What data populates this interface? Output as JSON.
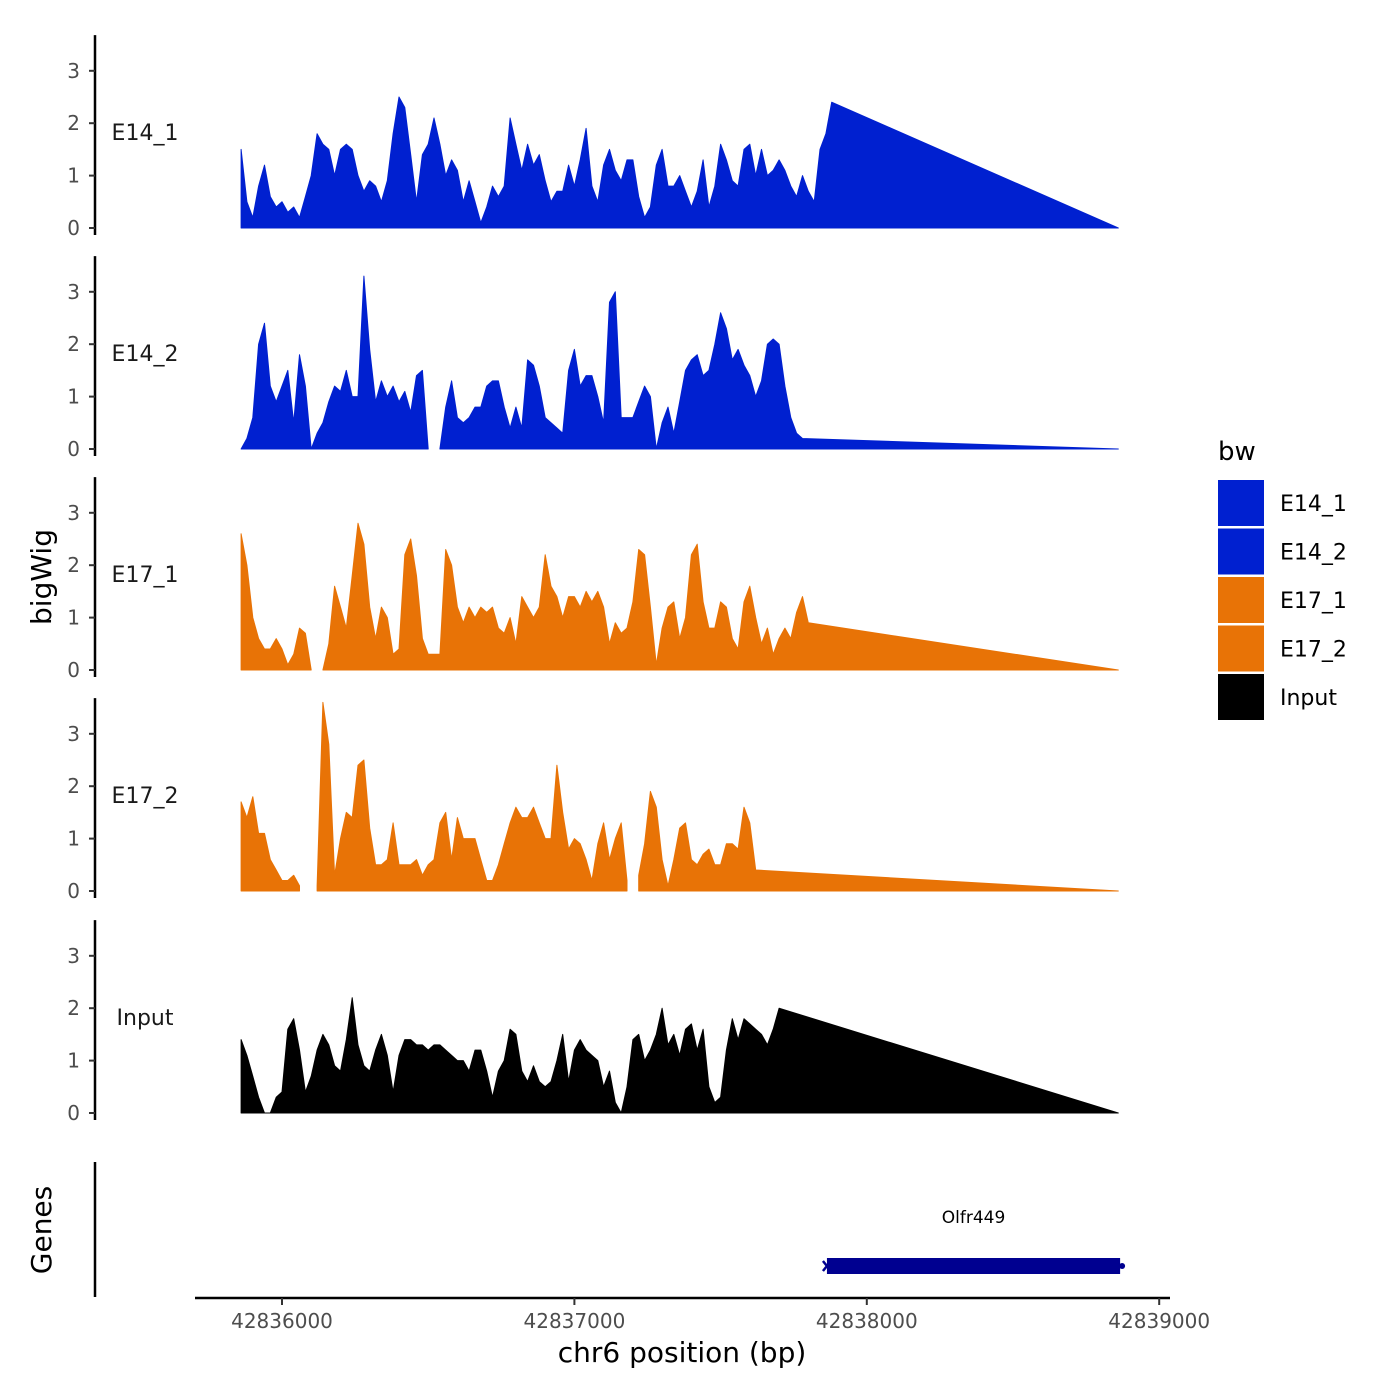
{
  "chart_data": {
    "type": "area",
    "subtype": "genome-browser-tracks",
    "xlabel": "chr6 position (bp)",
    "ylabel": "bigWig",
    "gene_track_label": "Genes",
    "xlim": [
      42835700,
      42839000
    ],
    "ylim": [
      0,
      3.7
    ],
    "x_ticks": [
      42836000,
      42837000,
      42838000,
      42839000
    ],
    "x_tick_labels": [
      "42836000",
      "42837000",
      "42838000",
      "42839000"
    ],
    "y_ticks": [
      0,
      1,
      2,
      3
    ],
    "y_tick_labels": [
      "0",
      "1",
      "2",
      "3"
    ],
    "x_start": 42835860,
    "x_end": 42838860,
    "step": 20,
    "legend": {
      "title": "bw",
      "position": "right",
      "entries": [
        {
          "label": "E14_1",
          "color": "#0020d0"
        },
        {
          "label": "E14_2",
          "color": "#0020d0"
        },
        {
          "label": "E17_1",
          "color": "#e87306"
        },
        {
          "label": "E17_2",
          "color": "#e87306"
        },
        {
          "label": "Input",
          "color": "#000000"
        }
      ]
    },
    "series": [
      {
        "name": "E14_1",
        "color": "#0020d0",
        "values": [
          1.5,
          0.5,
          0.2,
          0.8,
          1.2,
          0.6,
          0.4,
          0.5,
          0.3,
          0.4,
          0.2,
          0.6,
          1.0,
          1.8,
          1.6,
          1.5,
          1.0,
          1.5,
          1.6,
          1.5,
          1.0,
          0.7,
          0.9,
          0.8,
          0.5,
          0.9,
          1.8,
          2.5,
          2.3,
          1.4,
          0.5,
          1.4,
          1.6,
          2.1,
          1.6,
          1.0,
          1.3,
          1.1,
          0.5,
          0.9,
          0.5,
          0.1,
          0.4,
          0.8,
          0.6,
          0.8,
          2.1,
          1.6,
          1.1,
          1.6,
          1.2,
          1.4,
          0.9,
          0.5,
          0.7,
          0.7,
          1.2,
          0.8,
          1.3,
          1.9,
          0.8,
          0.5,
          1.2,
          1.5,
          1.1,
          0.9,
          1.3,
          1.3,
          0.6,
          0.2,
          0.4,
          1.2,
          1.5,
          0.8,
          0.8,
          1.0,
          0.7,
          0.4,
          0.7,
          1.3,
          0.4,
          0.8,
          1.6,
          1.3,
          0.9,
          0.8,
          1.5,
          1.6,
          1.0,
          1.5,
          1.0,
          1.1,
          1.3,
          1.1,
          0.8,
          0.6,
          1.0,
          0.7,
          0.5,
          1.5,
          1.8,
          2.4
        ],
        "fill_to_x": 42838860
      },
      {
        "name": "E14_2",
        "color": "#0020d0",
        "values": [
          0.0,
          0.2,
          0.6,
          2.0,
          2.4,
          1.2,
          0.9,
          1.2,
          1.5,
          0.5,
          1.8,
          1.2,
          0.0,
          0.3,
          0.5,
          0.9,
          1.2,
          1.1,
          1.5,
          1.0,
          1.0,
          3.3,
          1.9,
          0.9,
          1.3,
          1.0,
          1.2,
          0.9,
          1.1,
          0.7,
          1.4,
          1.5,
          0.0,
          null,
          0.0,
          0.8,
          1.3,
          0.6,
          0.5,
          0.6,
          0.8,
          0.8,
          1.2,
          1.3,
          1.3,
          0.8,
          0.4,
          0.8,
          0.4,
          1.7,
          1.6,
          1.2,
          0.6,
          0.5,
          0.4,
          0.3,
          1.5,
          1.9,
          1.2,
          1.4,
          1.4,
          1.0,
          0.5,
          2.8,
          3.0,
          0.6,
          0.6,
          0.6,
          0.9,
          1.2,
          1.0,
          0.0,
          0.5,
          0.8,
          0.3,
          0.9,
          1.5,
          1.7,
          1.8,
          1.4,
          1.5,
          2.0,
          2.6,
          2.3,
          1.7,
          1.9,
          1.6,
          1.4,
          1.0,
          1.3,
          2.0,
          2.1,
          2.0,
          1.2,
          0.6,
          0.3,
          0.2
        ],
        "fill_to_x": 42838860
      },
      {
        "name": "E17_1",
        "color": "#e87306",
        "values": [
          2.6,
          2.0,
          1.0,
          0.6,
          0.4,
          0.4,
          0.6,
          0.4,
          0.1,
          0.3,
          0.8,
          0.7,
          0.0,
          null,
          0.0,
          0.5,
          1.6,
          1.2,
          0.8,
          1.8,
          2.8,
          2.4,
          1.2,
          0.6,
          1.2,
          1.0,
          0.3,
          0.4,
          2.2,
          2.5,
          1.8,
          0.6,
          0.3,
          0.3,
          0.3,
          2.3,
          2.0,
          1.2,
          0.9,
          1.2,
          1.0,
          1.2,
          1.1,
          1.2,
          0.8,
          0.7,
          1.0,
          0.5,
          1.4,
          1.2,
          1.0,
          1.2,
          2.2,
          1.6,
          1.4,
          1.0,
          1.4,
          1.4,
          1.2,
          1.5,
          1.3,
          1.5,
          1.2,
          0.5,
          0.9,
          0.7,
          0.8,
          1.3,
          2.3,
          2.2,
          1.2,
          0.1,
          0.8,
          1.2,
          1.3,
          0.6,
          1.0,
          2.2,
          2.4,
          1.3,
          0.8,
          0.8,
          1.3,
          1.2,
          0.6,
          0.4,
          1.3,
          1.6,
          1.0,
          0.5,
          0.8,
          0.3,
          0.6,
          0.8,
          0.6,
          1.1,
          1.4,
          0.9
        ],
        "fill_to_x": 42838860
      },
      {
        "name": "E17_2",
        "color": "#e87306",
        "values": [
          1.7,
          1.4,
          1.8,
          1.1,
          1.1,
          0.6,
          0.4,
          0.2,
          0.2,
          0.3,
          0.1,
          null,
          null,
          0.1,
          3.6,
          2.8,
          0.3,
          1.0,
          1.5,
          1.4,
          2.4,
          2.5,
          1.2,
          0.5,
          0.5,
          0.6,
          1.3,
          0.5,
          0.5,
          0.5,
          0.6,
          0.3,
          0.5,
          0.6,
          1.3,
          1.5,
          0.6,
          1.4,
          1.0,
          1.0,
          1.0,
          0.6,
          0.2,
          0.2,
          0.5,
          0.9,
          1.3,
          1.6,
          1.4,
          1.4,
          1.6,
          1.3,
          1.0,
          1.0,
          2.4,
          1.5,
          0.8,
          1.0,
          0.9,
          0.6,
          0.2,
          0.9,
          1.3,
          0.6,
          1.0,
          1.3,
          0.2,
          null,
          0.3,
          0.9,
          1.9,
          1.6,
          0.6,
          0.1,
          0.6,
          1.2,
          1.3,
          0.6,
          0.5,
          0.7,
          0.8,
          0.5,
          0.5,
          0.9,
          0.9,
          0.8,
          1.6,
          1.3,
          0.4
        ],
        "fill_to_x": 42838860
      },
      {
        "name": "Input",
        "color": "#000000",
        "values": [
          1.4,
          1.1,
          0.7,
          0.3,
          0.0,
          0.0,
          0.3,
          0.4,
          1.6,
          1.8,
          1.2,
          0.4,
          0.7,
          1.2,
          1.5,
          1.3,
          0.9,
          0.8,
          1.4,
          2.2,
          1.3,
          0.9,
          0.8,
          1.2,
          1.5,
          1.1,
          0.4,
          1.1,
          1.4,
          1.4,
          1.3,
          1.3,
          1.2,
          1.3,
          1.3,
          1.2,
          1.1,
          1.0,
          1.0,
          0.8,
          1.2,
          1.2,
          0.8,
          0.3,
          0.8,
          1.0,
          1.6,
          1.5,
          0.8,
          0.6,
          0.9,
          0.6,
          0.5,
          0.6,
          1.0,
          1.5,
          0.6,
          1.2,
          1.4,
          1.2,
          1.1,
          1.0,
          0.5,
          0.8,
          0.2,
          0.0,
          0.5,
          1.4,
          1.5,
          1.0,
          1.2,
          1.5,
          2.0,
          1.3,
          1.5,
          1.1,
          1.6,
          1.7,
          1.2,
          1.6,
          0.5,
          0.2,
          0.3,
          1.2,
          1.8,
          1.4,
          1.8,
          1.7,
          1.6,
          1.5,
          1.3,
          1.6,
          2.0
        ],
        "fill_to_x": 42838860
      }
    ],
    "genes": [
      {
        "name": "Olfr449",
        "start": 42837850,
        "end": 42838880,
        "color": "#000090"
      }
    ]
  }
}
